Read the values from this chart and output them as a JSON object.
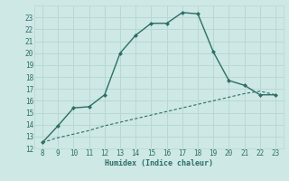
{
  "title": "",
  "xlabel": "Humidex (Indice chaleur)",
  "ylabel": "",
  "x_main": [
    8,
    9,
    10,
    11,
    12,
    13,
    14,
    15,
    16,
    17,
    18,
    19,
    20,
    21,
    22,
    23
  ],
  "y_main": [
    12.5,
    13.9,
    15.4,
    15.5,
    16.5,
    20.0,
    21.5,
    22.5,
    22.5,
    23.4,
    23.3,
    20.1,
    17.7,
    17.3,
    16.5,
    16.5
  ],
  "x_dashed": [
    8,
    9,
    10,
    11,
    12,
    13,
    14,
    15,
    16,
    17,
    18,
    19,
    20,
    21,
    22,
    23
  ],
  "y_dashed": [
    12.5,
    12.9,
    13.2,
    13.5,
    13.9,
    14.2,
    14.5,
    14.8,
    15.1,
    15.4,
    15.7,
    16.0,
    16.3,
    16.6,
    16.8,
    16.5
  ],
  "line_color": "#2d6e66",
  "bg_color": "#cde8e5",
  "grid_color": "#b8d8d4",
  "xlim": [
    7.5,
    23.5
  ],
  "ylim": [
    12,
    24
  ],
  "xticks": [
    8,
    9,
    10,
    11,
    12,
    13,
    14,
    15,
    16,
    17,
    18,
    19,
    20,
    21,
    22,
    23
  ],
  "yticks": [
    12,
    13,
    14,
    15,
    16,
    17,
    18,
    19,
    20,
    21,
    22,
    23
  ]
}
